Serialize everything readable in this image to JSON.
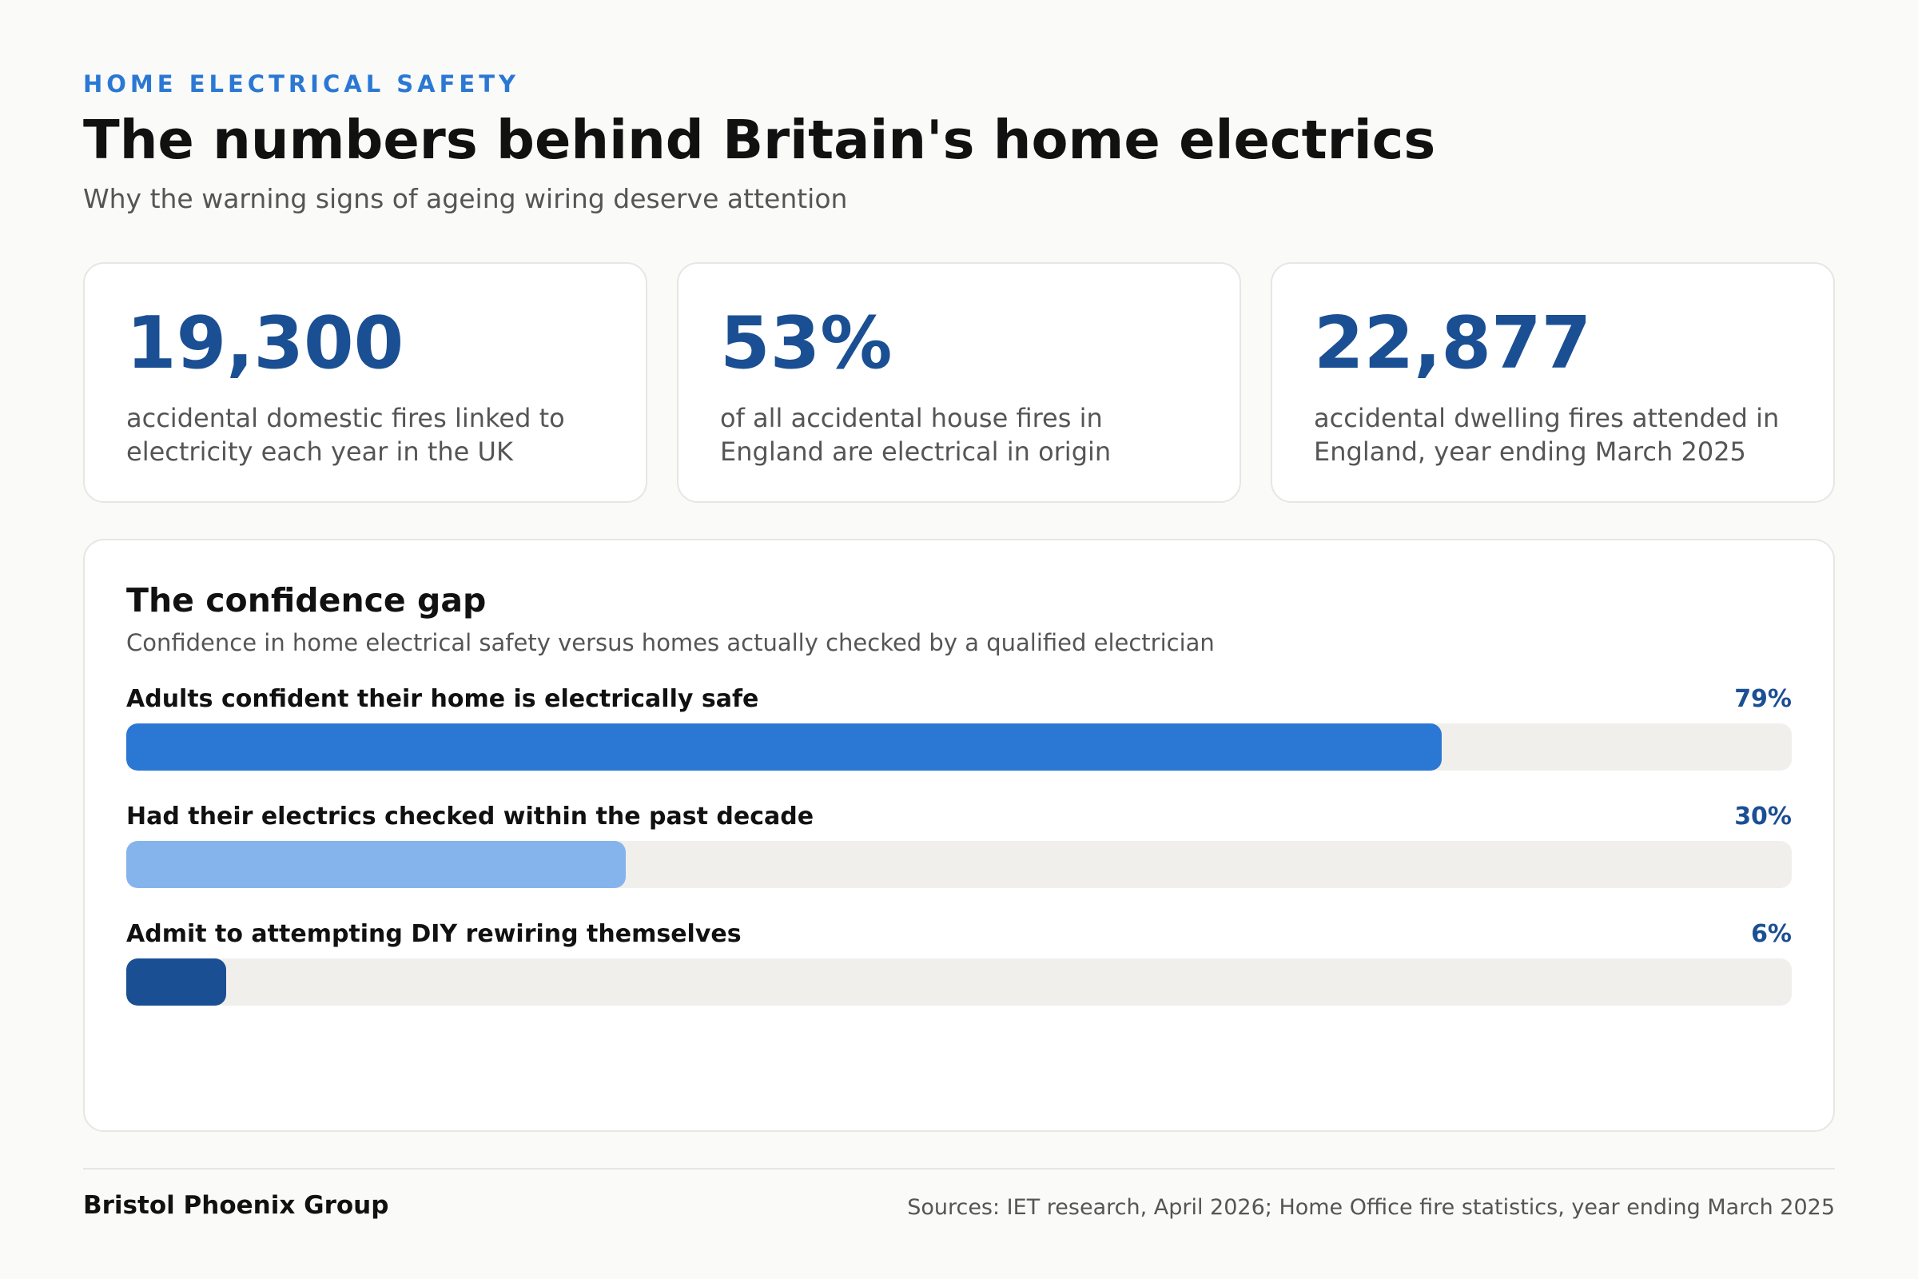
{
  "header": {
    "eyebrow": "HOME ELECTRICAL SAFETY",
    "title": "The numbers behind Britain's home electrics",
    "subtitle": "Why the warning signs of ageing wiring deserve attention"
  },
  "stats": [
    {
      "value": "19,300",
      "description": "accidental domestic fires linked to\nelectricity each year in the UK"
    },
    {
      "value": "53%",
      "description": "of all accidental house fires in\nEngland are electrical in origin"
    },
    {
      "value": "22,877",
      "description": "accidental dwelling fires attended in\nEngland, year ending March 2025"
    }
  ],
  "panel": {
    "title": "The confidence gap",
    "subtitle": "Confidence in home electrical safety versus homes actually checked by a qualified electrician"
  },
  "chart_data": {
    "type": "bar",
    "categories": [
      "Adults confident their home is electrically safe",
      "Had their electrics checked within the past decade",
      "Admit to attempting DIY rewiring themselves"
    ],
    "values": [
      79,
      30,
      6
    ],
    "value_labels": [
      "79%",
      "30%",
      "6%"
    ],
    "colors": [
      "#2b78d4",
      "#85b4ec",
      "#1b4f93"
    ],
    "track_color": "#f0efec",
    "xlim": [
      0,
      100
    ],
    "orientation": "horizontal"
  },
  "footer": {
    "brand": "Bristol Phoenix Group",
    "sources": "Sources: IET research, April 2026; Home Office fire statistics, year ending March 2025"
  }
}
